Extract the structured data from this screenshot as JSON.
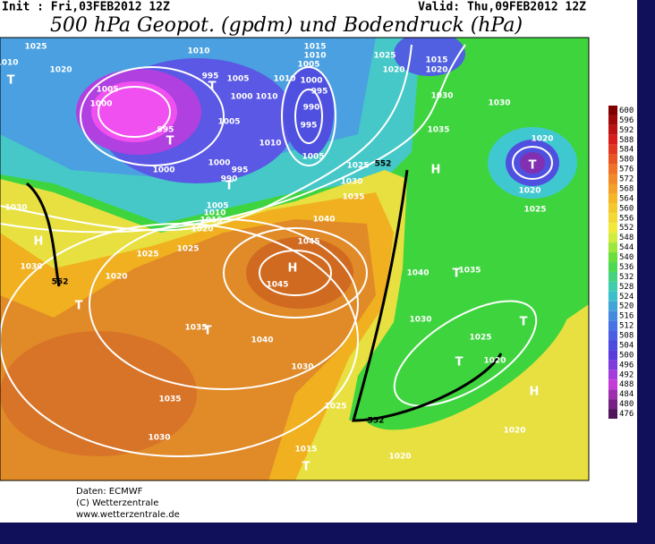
{
  "header": {
    "init": "Init : Fri,03FEB2012 12Z",
    "valid": "Valid: Thu,09FEB2012 12Z",
    "title": "500 hPa Geopot. (gpdm) und Bodendruck (hPa)"
  },
  "colorbar": {
    "ticks": [
      600,
      596,
      592,
      588,
      584,
      580,
      576,
      572,
      568,
      564,
      560,
      556,
      552,
      548,
      544,
      540,
      536,
      532,
      528,
      524,
      520,
      516,
      512,
      508,
      504,
      500,
      496,
      492,
      488,
      484,
      480,
      476
    ]
  },
  "map": {
    "labels": [
      "1025",
      "1010",
      "1020",
      "T",
      "1005",
      "1000",
      "995",
      "T",
      "1000",
      "1010",
      "995",
      "T",
      "1005",
      "1000",
      "1010",
      "1005",
      "1010",
      "1000",
      "990",
      "995",
      "1015",
      "1010",
      "1005",
      "995",
      "1010",
      "1005",
      "1000",
      "995",
      "990",
      "T",
      "1005",
      "1010",
      "1015",
      "1020",
      "1025",
      "1020",
      "1015",
      "1020",
      "1030",
      "1030",
      "1035",
      "H",
      "1020",
      "T",
      "1020",
      "1025",
      "1025",
      "1030",
      "1035",
      "1040",
      "1045",
      "H",
      "1045",
      "1030",
      "H",
      "1030",
      "1025",
      "1025",
      "1020",
      "T",
      "1035",
      "T",
      "1040",
      "1030",
      "1035",
      "1030",
      "1040",
      "1035",
      "T",
      "1030",
      "1025",
      "T",
      "T",
      "1020",
      "H",
      "1025",
      "1020",
      "1015",
      "T",
      "1020",
      "552",
      "552",
      "552"
    ]
  },
  "footer": {
    "lines": [
      "Daten: ECMWF",
      "(C) Wetterzentrale",
      "www.wetterzentrale.de"
    ]
  }
}
